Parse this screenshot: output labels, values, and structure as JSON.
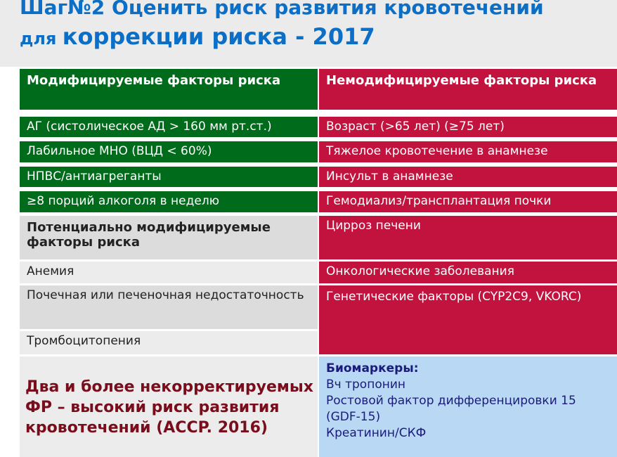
{
  "title": {
    "line1": "Шаг№2 Оценить риск развития кровотечений",
    "line2_prefix": "для ",
    "line2_main": "коррекции риска - 2017"
  },
  "table": {
    "left_header": "Модифицируемые факторы риска",
    "right_header": "Немодифицируемые факторы риска",
    "modifiable": [
      "АГ (систолическое АД > 160 мм рт.ст.)",
      "Лабильное МНО (ВЦД < 60%)",
      "НПВС/антиагреганты",
      "≥8 порций алкоголя в неделю"
    ],
    "potential_header": "Потенциально модифицируемые факторы риска",
    "potential": [
      "Анемия",
      "Почечная или печеночная недостаточность",
      "Тромбоцитопения"
    ],
    "nonmodifiable": [
      "Возраст (>65 лет) (≥75 лет)",
      "Тяжелое кровотечение в анамнезе",
      "Инсульт в анамнезе",
      "Гемодиализ/трансплантация почки",
      "Цирроз печени",
      "Онкологические заболевания",
      "Генетические факторы (CYP2C9, VKORC)"
    ]
  },
  "bottom": {
    "note": "Два и более некорректируемых ФР – высокий риск развития кровотечений (ACCP. 2016)",
    "biomarkers_title": "Биомаркеры:",
    "biomarkers": [
      "Вч тропонин",
      "Ростовой фактор дифференцировки 15 (GDF-15)",
      "Креатинин/СКФ"
    ]
  }
}
